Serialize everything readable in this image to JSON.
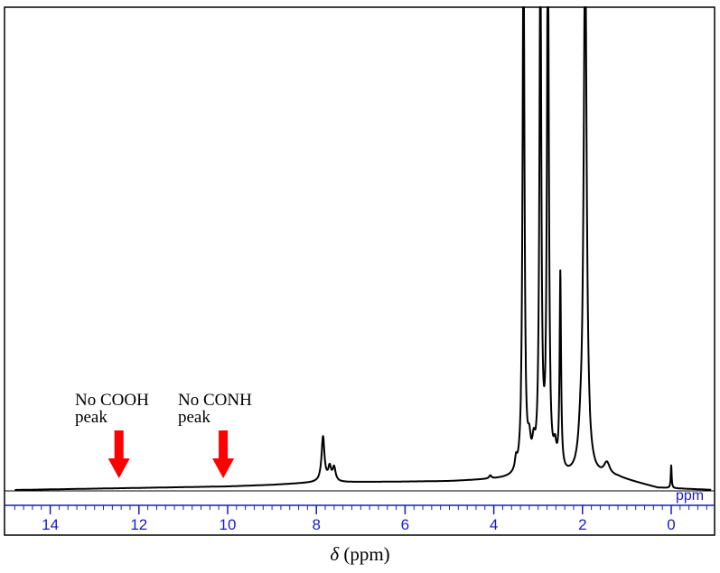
{
  "chart_data": {
    "type": "line",
    "xlabel_symbol": "δ",
    "xlabel_unit": "(ppm)",
    "axis_unit_label": "ppm",
    "xlim": [
      14.8,
      -0.9
    ],
    "x_reversed": true,
    "ticks": [
      {
        "value": 14,
        "label": "14"
      },
      {
        "value": 12,
        "label": "12"
      },
      {
        "value": 10,
        "label": "10"
      },
      {
        "value": 8,
        "label": "8"
      },
      {
        "value": 6,
        "label": "6"
      },
      {
        "value": 4,
        "label": "4"
      },
      {
        "value": 2,
        "label": "2"
      },
      {
        "value": 0,
        "label": "0"
      }
    ],
    "minor_tick_step": 0.2,
    "baseline": [
      [
        14.8,
        0.0
      ],
      [
        10.0,
        0.009
      ],
      [
        9.0,
        0.013
      ],
      [
        8.0,
        0.019
      ],
      [
        5.0,
        0.022
      ],
      [
        3.6,
        0.028
      ],
      [
        2.3,
        0.03
      ],
      [
        1.2,
        0.03
      ],
      [
        0.3,
        0.005
      ],
      [
        -0.9,
        0.0
      ]
    ],
    "peaks": [
      {
        "ppm": 7.85,
        "height": 0.115,
        "width": 0.04
      },
      {
        "ppm": 7.7,
        "height": 0.035,
        "width": 0.04
      },
      {
        "ppm": 7.6,
        "height": 0.035,
        "width": 0.04
      },
      {
        "ppm": 4.08,
        "height": 0.008,
        "width": 0.03
      },
      {
        "ppm": 3.5,
        "height": 0.03,
        "width": 0.03
      },
      {
        "ppm": 3.33,
        "height": 1.4,
        "width": 0.025
      },
      {
        "ppm": 3.2,
        "height": 0.06,
        "width": 0.04
      },
      {
        "ppm": 3.1,
        "height": 0.055,
        "width": 0.04
      },
      {
        "ppm": 2.95,
        "height": 1.4,
        "width": 0.025
      },
      {
        "ppm": 2.78,
        "height": 1.4,
        "width": 0.025
      },
      {
        "ppm": 2.62,
        "height": 0.05,
        "width": 0.04
      },
      {
        "ppm": 2.5,
        "height": 0.5,
        "width": 0.02
      },
      {
        "ppm": 2.05,
        "height": 0.05,
        "width": 0.05
      },
      {
        "ppm": 1.94,
        "height": 1.4,
        "width": 0.04
      },
      {
        "ppm": 1.45,
        "height": 0.032,
        "width": 0.08
      },
      {
        "ppm": 0.0,
        "height": 0.058,
        "width": 0.012
      }
    ],
    "annotations": [
      {
        "line1": "No COOH",
        "line2": "peak",
        "arrow_ppm": 12.45
      },
      {
        "line1": "No CONH",
        "line2": "peak",
        "arrow_ppm": 10.1
      }
    ],
    "colors": {
      "spectrum": "#000000",
      "axis": "#1a1acc",
      "axis_band": "#ffffff",
      "arrow": "#ff0000"
    }
  }
}
